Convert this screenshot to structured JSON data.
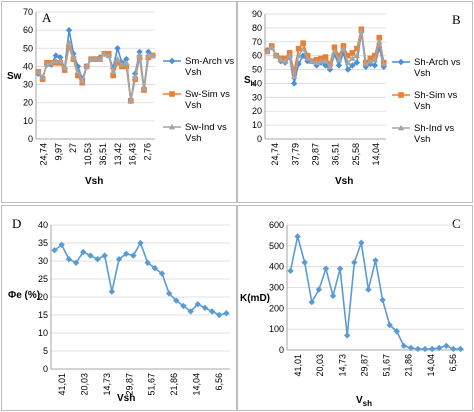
{
  "colors": {
    "arch": "#4a90d9",
    "sim": "#ed7d31",
    "ind": "#a5a5a5",
    "series": "#5b9bd5",
    "grid": "#d9d9d9",
    "axis": "#8c8c8c"
  },
  "chart_data": [
    {
      "id": "A",
      "type": "line",
      "panel_letter": "A",
      "xlabel": "Vsh",
      "ylabel": "Sw",
      "ylim": [
        0,
        70
      ],
      "yticks": [
        0,
        10,
        20,
        30,
        40,
        50,
        60,
        70
      ],
      "x_tick_labels": [
        "24,74",
        "9,97",
        "27",
        "10,53",
        "36,51",
        "13,42",
        "16,43",
        "2,76"
      ],
      "grid": true,
      "legend": "right",
      "series": [
        {
          "name": "Sm-Arch vs Vsh",
          "color": "#4a90d9",
          "marker": "diamond",
          "values": [
            36,
            34,
            41,
            41,
            46,
            45,
            39,
            60,
            47,
            40,
            33,
            40,
            44,
            44,
            45,
            47,
            46,
            39,
            50,
            42,
            44,
            21,
            36,
            48,
            28,
            48,
            46
          ]
        },
        {
          "name": "Sw-Sim vs Vsh",
          "color": "#ed7d31",
          "marker": "square",
          "values": [
            37,
            33,
            42,
            42,
            42,
            42,
            38,
            51,
            44,
            35,
            31,
            40,
            44,
            44,
            44,
            47,
            47,
            35,
            42,
            40,
            40,
            21,
            33,
            45,
            27,
            45,
            46
          ]
        },
        {
          "name": "Sw-Ind vs Vsh",
          "color": "#a5a5a5",
          "marker": "triangle",
          "values": [
            37,
            34,
            41,
            42,
            43,
            43,
            39,
            53,
            45,
            37,
            32,
            40,
            44,
            44,
            44,
            47,
            46,
            37,
            44,
            41,
            42,
            21,
            34,
            46,
            28,
            46,
            46
          ]
        }
      ]
    },
    {
      "id": "B",
      "type": "line",
      "panel_letter": "B",
      "xlabel": "Vsh",
      "ylabel": "Sh",
      "ylim": [
        0,
        90
      ],
      "yticks": [
        0,
        10,
        20,
        30,
        40,
        50,
        60,
        70,
        80,
        90
      ],
      "x_tick_labels": [
        "24,74",
        "37,79",
        "29,87",
        "36,51",
        "25,58",
        "14,04"
      ],
      "grid": true,
      "legend": "right",
      "series": [
        {
          "name": "Sh-Arch vs Vsh",
          "color": "#4a90d9",
          "marker": "diamond",
          "values": [
            64,
            66,
            60,
            56,
            55,
            59,
            40,
            54,
            60,
            56,
            56,
            53,
            55,
            53,
            50,
            61,
            53,
            62,
            50,
            53,
            55,
            77,
            52,
            54,
            53,
            66,
            52
          ]
        },
        {
          "name": "Sh-Sim vs Vsh",
          "color": "#ed7d31",
          "marker": "square",
          "values": [
            63,
            67,
            60,
            58,
            58,
            62,
            49,
            65,
            69,
            60,
            56,
            57,
            58,
            59,
            54,
            66,
            60,
            67,
            60,
            62,
            65,
            79,
            55,
            58,
            60,
            73,
            55
          ]
        },
        {
          "name": "Sh-Ind vs Vsh",
          "color": "#a5a5a5",
          "marker": "triangle",
          "values": [
            63,
            66,
            60,
            57,
            56,
            60,
            45,
            60,
            65,
            58,
            56,
            55,
            56,
            56,
            52,
            63,
            57,
            65,
            55,
            58,
            60,
            78,
            54,
            56,
            57,
            70,
            54
          ]
        }
      ]
    },
    {
      "id": "D",
      "type": "line",
      "panel_letter": "D",
      "xlabel": "Vsh",
      "ylabel": "Φe (%)",
      "ylim": [
        0,
        40
      ],
      "yticks": [
        0,
        5,
        10,
        15,
        20,
        25,
        30,
        35,
        40
      ],
      "x_tick_labels": [
        "41,01",
        "20,03",
        "14,73",
        "29,87",
        "51,67",
        "21,86",
        "14,04",
        "6,56"
      ],
      "grid": true,
      "series": [
        {
          "name": "",
          "color": "#5b9bd5",
          "marker": "diamond",
          "values": [
            33,
            34.5,
            30.5,
            29.5,
            32.5,
            31.5,
            30.5,
            31.5,
            21.5,
            30.5,
            32,
            31.5,
            35,
            29.5,
            28,
            26.5,
            21,
            19,
            17.5,
            16,
            18,
            17,
            16,
            15,
            15.5
          ]
        }
      ]
    },
    {
      "id": "C",
      "type": "line",
      "panel_letter": "C",
      "xlabel": "Vsh",
      "ylabel": "K(mD)",
      "ylim": [
        0,
        600
      ],
      "yticks": [
        0,
        100,
        200,
        300,
        400,
        500,
        600
      ],
      "x_tick_labels": [
        "41,01",
        "20,03",
        "14,73",
        "29,87",
        "51,67",
        "21,86",
        "14,04",
        "6,56"
      ],
      "grid": true,
      "series": [
        {
          "name": "",
          "color": "#5b9bd5",
          "marker": "diamond",
          "values": [
            380,
            545,
            420,
            230,
            290,
            390,
            260,
            390,
            70,
            420,
            515,
            290,
            430,
            240,
            120,
            90,
            20,
            10,
            5,
            5,
            5,
            10,
            20,
            5,
            5
          ]
        }
      ]
    }
  ]
}
